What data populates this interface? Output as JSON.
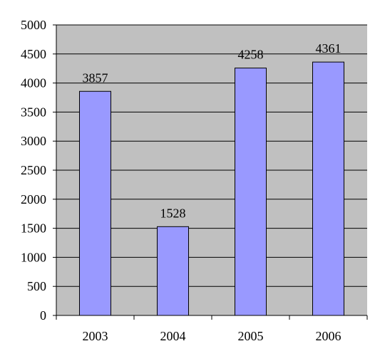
{
  "chart_data": {
    "type": "bar",
    "title": "",
    "xlabel": "",
    "ylabel": "",
    "categories": [
      "2003",
      "2004",
      "2005",
      "2006"
    ],
    "values": [
      3857,
      1528,
      4258,
      4361
    ],
    "data_labels": [
      "3857",
      "1528",
      "4258",
      "4361"
    ],
    "ylim": [
      0,
      5000
    ],
    "yticks": [
      0,
      500,
      1000,
      1500,
      2000,
      2500,
      3000,
      3500,
      4000,
      4500,
      5000
    ],
    "ytick_labels": [
      "0",
      "500",
      "1000",
      "1500",
      "2000",
      "2500",
      "3000",
      "3500",
      "4000",
      "4500",
      "5000"
    ],
    "grid": true,
    "legend": "none",
    "colors": {
      "plot_background": "#c0c0c0",
      "bar_fill": "#9999ff",
      "bar_stroke": "#000000",
      "gridline": "#000000"
    }
  }
}
